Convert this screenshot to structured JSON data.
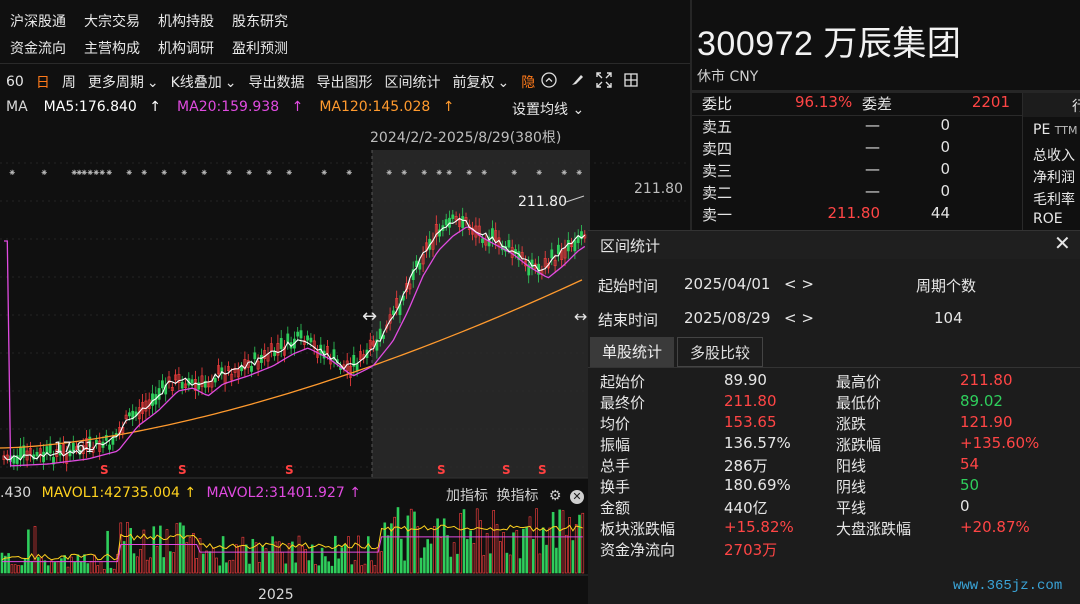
{
  "nav": {
    "row1": [
      "沪深股通",
      "大宗交易",
      "机构持股",
      "股东研究"
    ],
    "row2": [
      "资金流向",
      "主营构成",
      "机构调研",
      "盈利预测"
    ]
  },
  "toolbar": {
    "period_60": "60",
    "day": "日",
    "week": "周",
    "more_periods": "更多周期",
    "kline_overlay": "K线叠加",
    "export_data": "导出数据",
    "export_image": "导出图形",
    "range_stats": "区间统计",
    "adjust": "前复权",
    "hide": "隐"
  },
  "ma": {
    "prefix": "MA",
    "ma5": "MA5:176.840",
    "ma20": "MA20:159.938",
    "ma120": "MA120:145.028",
    "set_ma": "设置均线",
    "range_label": "2024/2/2-2025/8/29(380根)",
    "price_label": "211.80",
    "price_axis": "211.80",
    "low_label": "17.61",
    "year_label": "2025",
    "colors": {
      "ma5": "#ffffff",
      "ma20": "#e04be0",
      "ma120": "#ff9a2e"
    }
  },
  "vol": {
    "left": ".430",
    "mavol1": "MAVOL1:42735.004",
    "mavol2": "MAVOL2:31401.927",
    "add_indicator": "加指标",
    "switch_indicator": "换指标"
  },
  "stock": {
    "title": "300972 万辰集团",
    "status": "休市 CNY"
  },
  "orderbook": {
    "ratio_label": "委比",
    "ratio_value": "96.13%",
    "diff_label": "委差",
    "diff_value": "2201",
    "rows": [
      {
        "label": "卖五",
        "price": "—",
        "vol": "0"
      },
      {
        "label": "卖四",
        "price": "—",
        "vol": "0"
      },
      {
        "label": "卖三",
        "price": "—",
        "vol": "0"
      },
      {
        "label": "卖二",
        "price": "—",
        "vol": "0"
      },
      {
        "label": "卖一",
        "price": "211.80",
        "vol": "44"
      }
    ]
  },
  "financials": {
    "tab": "行",
    "pe": "PE",
    "ttm": "TTM",
    "revenue": "总收入",
    "net_profit": "净利润",
    "gross_margin": "毛利率",
    "roe": "ROE"
  },
  "popup": {
    "title": "区间统计",
    "start_label": "起始时间",
    "start_value": "2025/04/01",
    "end_label": "结束时间",
    "end_value": "2025/08/29",
    "arrows": "< >",
    "count_label": "周期个数",
    "count_value": "104",
    "tab_single": "单股统计",
    "tab_multi": "多股比较",
    "left_stats": [
      {
        "label": "起始价",
        "value": "89.90",
        "color": "#e6e6e6"
      },
      {
        "label": "最终价",
        "value": "211.80",
        "color": "#ff4545"
      },
      {
        "label": "均价",
        "value": "153.65",
        "color": "#ff4545"
      },
      {
        "label": "振幅",
        "value": "136.57%",
        "color": "#e6e6e6"
      },
      {
        "label": "总手",
        "value": "286万",
        "color": "#e6e6e6"
      },
      {
        "label": "换手",
        "value": "180.69%",
        "color": "#e6e6e6"
      },
      {
        "label": "金额",
        "value": "440亿",
        "color": "#e6e6e6"
      },
      {
        "label": "板块涨跌幅",
        "value": "+15.82%",
        "color": "#ff4545"
      },
      {
        "label": "资金净流向",
        "value": "2703万",
        "color": "#ff4545"
      }
    ],
    "right_stats": [
      {
        "label": "最高价",
        "value": "211.80",
        "color": "#ff4545"
      },
      {
        "label": "最低价",
        "value": "89.02",
        "color": "#2fce5c"
      },
      {
        "label": "涨跌",
        "value": "121.90",
        "color": "#ff4545"
      },
      {
        "label": "涨跌幅",
        "value": "+135.60%",
        "color": "#ff4545"
      },
      {
        "label": "阳线",
        "value": "54",
        "color": "#ff4545"
      },
      {
        "label": "阴线",
        "value": "50",
        "color": "#2fce5c"
      },
      {
        "label": "平线",
        "value": "0",
        "color": "#e6e6e6"
      },
      {
        "label": "大盘涨跌幅",
        "value": "+20.87%",
        "color": "#ff4545"
      }
    ]
  },
  "watermark": "www.365jz.com"
}
